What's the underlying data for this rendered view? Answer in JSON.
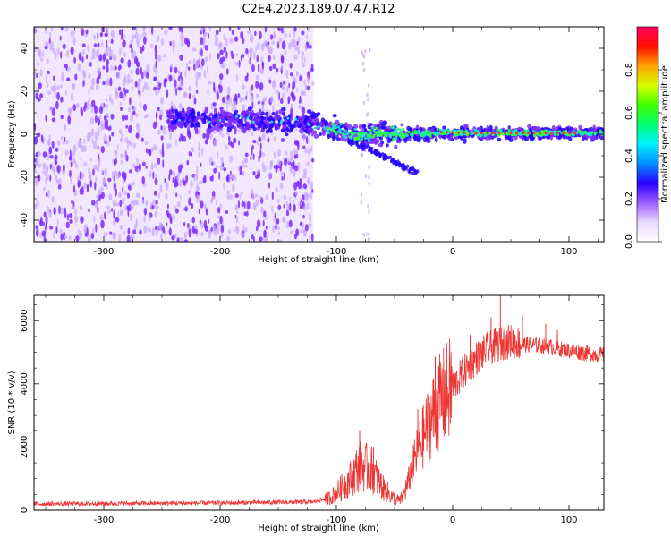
{
  "title": "C2E4.2023.189.07.47.R12",
  "colors": {
    "snr_line": "#ee3333",
    "spec_speckle": "#7b2cff",
    "spec_light": "#c9a6ff",
    "spec_core": "#2200ff",
    "spec_mid": "#1ce6c8",
    "spec_high": "#33ff33",
    "spec_peak": "#ff3322",
    "axis": "#000000"
  },
  "chart_data": [
    {
      "type": "heatmap",
      "xlabel": "Height of straight line (km)",
      "ylabel": "Frequency (Hz)",
      "xlim": [
        -360,
        130
      ],
      "ylim": [
        -50,
        50
      ],
      "xticks": [
        -300,
        -200,
        -100,
        0,
        100
      ],
      "yticks": [
        -40,
        -20,
        0,
        20,
        40
      ],
      "colorbar": {
        "label": "Normalized spectral amplitude",
        "range": [
          0,
          1
        ],
        "ticks": [
          0.0,
          0.2,
          0.4,
          0.6,
          0.8
        ],
        "tick_labels": [
          "0.0",
          "0.2",
          "0.4",
          "0.6",
          "0.8"
        ],
        "colors": [
          "#ffffff",
          "#e8d8ff",
          "#9a5cff",
          "#2a00ff",
          "#0090ff",
          "#00f0ff",
          "#00ff70",
          "#40ff00",
          "#d8ff00",
          "#ffa000",
          "#ff1000",
          "#ff0060"
        ]
      },
      "noise_region": {
        "x_from": -360,
        "x_to": -120,
        "freq_from": -50,
        "freq_to": 50
      },
      "signal_ridge": [
        {
          "x": -245,
          "freq": 7,
          "amp": 0.25
        },
        {
          "x": -200,
          "freq": 7,
          "amp": 0.3
        },
        {
          "x": -150,
          "freq": 6,
          "amp": 0.3
        },
        {
          "x": -120,
          "freq": 5,
          "amp": 0.35
        },
        {
          "x": -100,
          "freq": 2,
          "amp": 0.45
        },
        {
          "x": -80,
          "freq": -1,
          "amp": 0.5
        },
        {
          "x": -60,
          "freq": 1,
          "amp": 0.55
        },
        {
          "x": -45,
          "freq": 0,
          "amp": 0.55
        },
        {
          "x": -30,
          "freq": 0,
          "amp": 0.6
        },
        {
          "x": -10,
          "freq": 1,
          "amp": 0.75
        },
        {
          "x": 20,
          "freq": 0.5,
          "amp": 0.85
        },
        {
          "x": 60,
          "freq": 0.5,
          "amp": 0.88
        },
        {
          "x": 100,
          "freq": 0.5,
          "amp": 0.88
        },
        {
          "x": 130,
          "freq": 0.5,
          "amp": 0.75
        }
      ],
      "trailing_branch": [
        {
          "x": -90,
          "freq": -3
        },
        {
          "x": -60,
          "freq": -10
        },
        {
          "x": -30,
          "freq": -18
        }
      ]
    },
    {
      "type": "line",
      "xlabel": "Height of straight line (km)",
      "ylabel": "SNR (10 * v/v)",
      "xlim": [
        -360,
        130
      ],
      "ylim": [
        0,
        6800
      ],
      "xticks": [
        -300,
        -200,
        -100,
        0,
        100
      ],
      "yticks": [
        0,
        2000,
        4000,
        6000
      ],
      "envelope": {
        "x": [
          -360,
          -300,
          -200,
          -120,
          -105,
          -90,
          -80,
          -70,
          -60,
          -50,
          -45,
          -40,
          -35,
          -30,
          -20,
          -10,
          0,
          10,
          20,
          30,
          40,
          50,
          60,
          80,
          100,
          130
        ],
        "y": [
          200,
          210,
          230,
          260,
          400,
          900,
          1400,
          1300,
          700,
          350,
          300,
          700,
          1300,
          1900,
          2800,
          3500,
          3900,
          4400,
          4800,
          5100,
          5250,
          5350,
          5250,
          5200,
          5050,
          4900
        ]
      },
      "spikes": [
        {
          "x": -80,
          "y": 2500
        },
        {
          "x": -68,
          "y": 2000
        },
        {
          "x": -35,
          "y": 3300
        },
        {
          "x": -30,
          "y": 3200
        },
        {
          "x": -15,
          "y": 4850
        },
        {
          "x": 0,
          "y": 4300
        },
        {
          "x": 15,
          "y": 5550
        },
        {
          "x": 33,
          "y": 6100
        },
        {
          "x": 41,
          "y": 6800
        },
        {
          "x": 45,
          "y": 3000
        },
        {
          "x": 60,
          "y": 6200
        },
        {
          "x": 80,
          "y": 5900
        },
        {
          "x": 90,
          "y": 5700
        }
      ]
    }
  ]
}
